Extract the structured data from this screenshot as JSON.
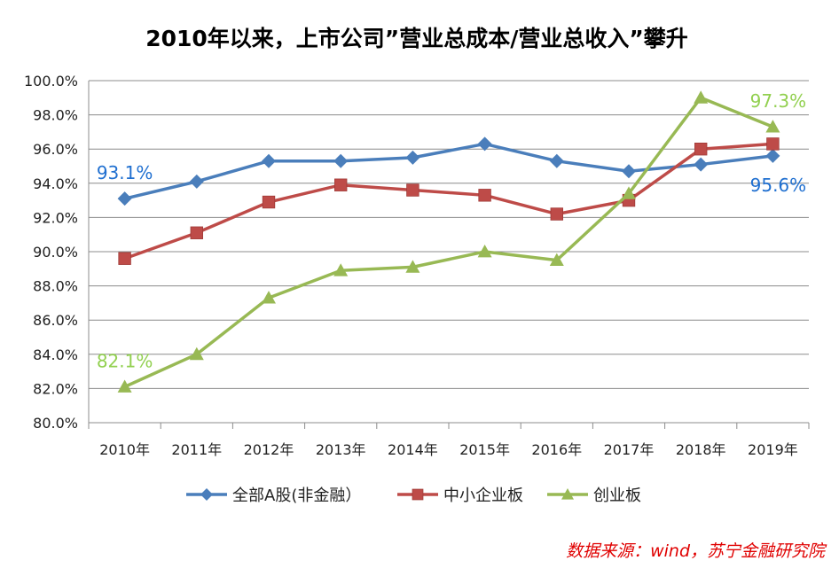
{
  "chart_data": {
    "type": "line",
    "title": "2010年以来，上市公司”营业总成本/营业总收入”攀升",
    "categories": [
      "2010年",
      "2011年",
      "2012年",
      "2013年",
      "2014年",
      "2015年",
      "2016年",
      "2017年",
      "2018年",
      "2019年"
    ],
    "ylim": [
      80,
      100
    ],
    "yticks": [
      "80.0%",
      "82.0%",
      "84.0%",
      "86.0%",
      "88.0%",
      "90.0%",
      "92.0%",
      "94.0%",
      "96.0%",
      "98.0%",
      "100.0%"
    ],
    "grid": true,
    "legend_position": "bottom",
    "series": [
      {
        "name": "全部A股(非金融）",
        "color": "#4a7ebb",
        "marker": "diamond",
        "values": [
          93.1,
          94.1,
          95.3,
          95.3,
          95.5,
          96.3,
          95.3,
          94.7,
          95.1,
          95.6
        ]
      },
      {
        "name": "中小企业板",
        "color": "#be4b48",
        "marker": "square",
        "values": [
          89.6,
          91.1,
          92.9,
          93.9,
          93.6,
          93.3,
          92.2,
          93.0,
          96.0,
          96.3
        ]
      },
      {
        "name": "创业板",
        "color": "#98b954",
        "marker": "triangle",
        "values": [
          82.1,
          84.0,
          87.3,
          88.9,
          89.1,
          90.0,
          89.5,
          93.4,
          99.0,
          97.3
        ]
      }
    ],
    "annotations": [
      {
        "text": "93.1%",
        "color": "#1f6fd0",
        "series": 0,
        "index": 0
      },
      {
        "text": "95.6%",
        "color": "#1f6fd0",
        "series": 0,
        "index": 9
      },
      {
        "text": "82.1%",
        "color": "#92d050",
        "series": 2,
        "index": 0
      },
      {
        "text": "97.3%",
        "color": "#92d050",
        "series": 2,
        "index": 9
      }
    ]
  },
  "source": "数据来源：wind，苏宁金融研究院"
}
